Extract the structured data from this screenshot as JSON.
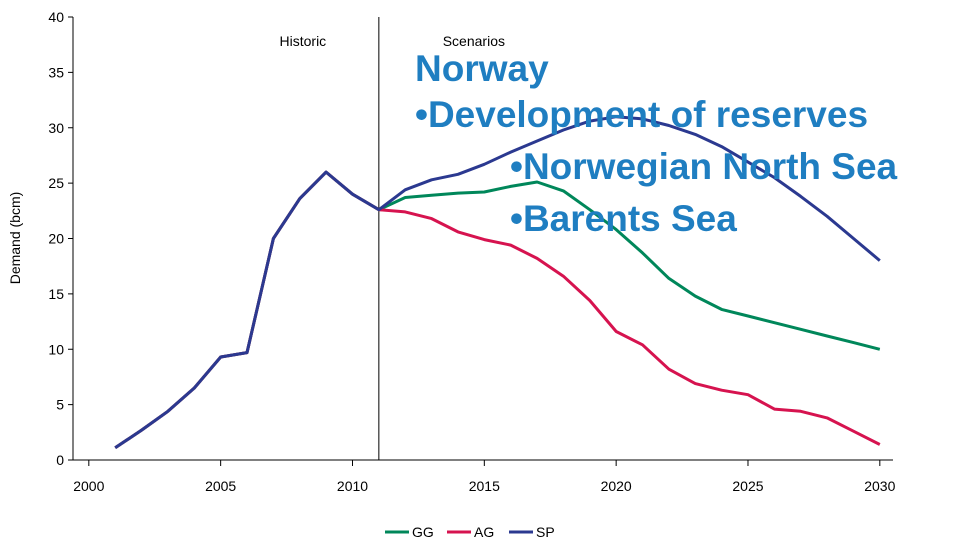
{
  "chart_data": {
    "type": "line",
    "y_label": "Demand (bcm)",
    "x": [
      2001,
      2002,
      2003,
      2004,
      2005,
      2006,
      2007,
      2008,
      2009,
      2010,
      2011,
      2012,
      2013,
      2014,
      2015,
      2016,
      2017,
      2018,
      2019,
      2020,
      2021,
      2022,
      2023,
      2024,
      2025,
      2026,
      2027,
      2028,
      2029,
      2030
    ],
    "series": [
      {
        "name": "GG",
        "color": "#00875a",
        "values": [
          1.1,
          2.7,
          4.4,
          6.5,
          9.3,
          9.7,
          20,
          23.6,
          26,
          24,
          22.6,
          23.7,
          23.9,
          24.1,
          24.2,
          24.7,
          25.1,
          24.3,
          22.6,
          20.8,
          18.7,
          16.4,
          14.8,
          13.6,
          13,
          12.4,
          11.8,
          11.2,
          10.6,
          10
        ]
      },
      {
        "name": "AG",
        "color": "#d6134f",
        "values": [
          1.1,
          2.7,
          4.4,
          6.5,
          9.3,
          9.7,
          20,
          23.6,
          26,
          24,
          22.6,
          22.4,
          21.8,
          20.6,
          19.9,
          19.4,
          18.2,
          16.6,
          14.4,
          11.6,
          10.4,
          8.2,
          6.9,
          6.3,
          5.9,
          4.6,
          4.4,
          3.8,
          2.6,
          1.4
        ]
      },
      {
        "name": "SP",
        "color": "#2b3990",
        "values": [
          1.1,
          2.7,
          4.4,
          6.5,
          9.3,
          9.7,
          20,
          23.6,
          26,
          24,
          22.6,
          24.4,
          25.3,
          25.8,
          26.7,
          27.8,
          28.8,
          29.8,
          30.6,
          31,
          30.8,
          30.2,
          29.4,
          28.3,
          26.9,
          25.5,
          23.8,
          22,
          20,
          18
        ]
      }
    ],
    "xlim": [
      1999.4,
      2030.5
    ],
    "xticks": [
      2000,
      2005,
      2010,
      2015,
      2020,
      2025,
      2030
    ],
    "ylim": [
      0,
      40
    ],
    "yticks": [
      0,
      5,
      10,
      15,
      20,
      25,
      30,
      35,
      40
    ],
    "divider_x": 2011,
    "period_labels": [
      "Historic",
      "Scenarios"
    ],
    "annotations": [
      "Norway",
      "•Development of reserves",
      "•Norwegian North Sea",
      "•Barents Sea"
    ],
    "legend": "bottom"
  }
}
